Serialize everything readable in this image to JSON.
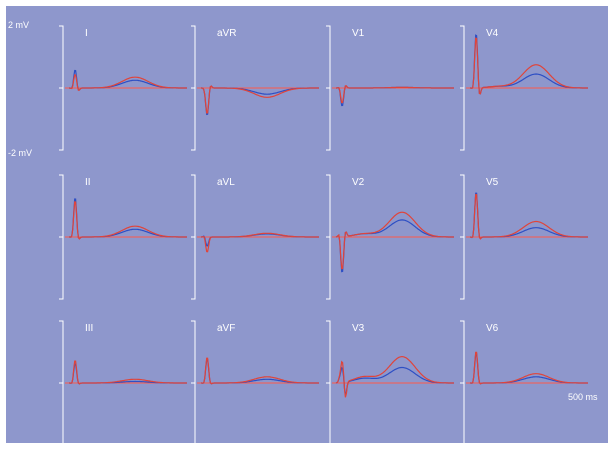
{
  "colors": {
    "background": "#8e97cc",
    "axis": "#ffffff",
    "baseline": "#ff5a4a",
    "series_blue": "#2e4fc4",
    "series_red": "#e0443a"
  },
  "scale": {
    "top_label": "2 mV",
    "bottom_label": "-2 mV",
    "time_label": "500 ms"
  },
  "chart_data": {
    "type": "line",
    "title": "",
    "layout": "3 rows x 4 columns of leads",
    "y_unit": "mV",
    "ylim": [
      -2,
      2
    ],
    "x_unit": "ms",
    "xlim": [
      0,
      500
    ],
    "grid": false,
    "series_names": [
      "",
      ""
    ],
    "leads": [
      {
        "name": "I",
        "blue": {
          "q": -0.05,
          "r": 0.6,
          "s": -0.1,
          "st": 0.0,
          "t": 0.25
        },
        "red": {
          "q": -0.05,
          "r": 0.45,
          "s": -0.1,
          "st": 0.0,
          "t": 0.35
        }
      },
      {
        "name": "aVR",
        "blue": {
          "q": 0.0,
          "r": -0.9,
          "s": 0.1,
          "st": 0.0,
          "t": -0.2
        },
        "red": {
          "q": 0.0,
          "r": -0.85,
          "s": 0.1,
          "st": 0.0,
          "t": -0.3
        }
      },
      {
        "name": "V1",
        "blue": {
          "q": 0.05,
          "r": -0.6,
          "s": 0.1,
          "st": 0.0,
          "t": 0.02
        },
        "red": {
          "q": 0.05,
          "r": -0.5,
          "s": 0.1,
          "st": 0.0,
          "t": 0.02
        }
      },
      {
        "name": "V4",
        "blue": {
          "q": -0.1,
          "r": 1.8,
          "s": -0.3,
          "st": 0.05,
          "t": 0.45
        },
        "red": {
          "q": -0.1,
          "r": 1.7,
          "s": -0.3,
          "st": 0.05,
          "t": 0.75
        }
      },
      {
        "name": "II",
        "blue": {
          "q": -0.05,
          "r": 1.3,
          "s": -0.1,
          "st": 0.0,
          "t": 0.25
        },
        "red": {
          "q": -0.05,
          "r": 1.2,
          "s": -0.1,
          "st": 0.0,
          "t": 0.35
        }
      },
      {
        "name": "aVL",
        "blue": {
          "q": 0.05,
          "r": -0.3,
          "s": 0.0,
          "st": 0.0,
          "t": 0.1
        },
        "red": {
          "q": 0.05,
          "r": -0.5,
          "s": 0.0,
          "st": 0.0,
          "t": 0.12
        }
      },
      {
        "name": "V2",
        "blue": {
          "q": 0.15,
          "r": -1.2,
          "s": 0.2,
          "st": 0.1,
          "t": 0.55
        },
        "red": {
          "q": 0.15,
          "r": -1.1,
          "s": 0.2,
          "st": 0.1,
          "t": 0.8
        }
      },
      {
        "name": "V5",
        "blue": {
          "q": -0.1,
          "r": 1.5,
          "s": -0.1,
          "st": 0.0,
          "t": 0.3
        },
        "red": {
          "q": -0.1,
          "r": 1.45,
          "s": -0.1,
          "st": 0.0,
          "t": 0.5
        }
      },
      {
        "name": "III",
        "blue": {
          "q": -0.05,
          "r": 0.65,
          "s": -0.05,
          "st": 0.0,
          "t": 0.05
        },
        "red": {
          "q": -0.05,
          "r": 0.75,
          "s": -0.05,
          "st": 0.0,
          "t": 0.12
        }
      },
      {
        "name": "aVF",
        "blue": {
          "q": -0.05,
          "r": 0.8,
          "s": -0.05,
          "st": 0.0,
          "t": 0.12
        },
        "red": {
          "q": -0.05,
          "r": 0.85,
          "s": -0.05,
          "st": 0.0,
          "t": 0.2
        }
      },
      {
        "name": "V3",
        "blue": {
          "q": 0.1,
          "r": 0.5,
          "s": -0.45,
          "st": 0.15,
          "t": 0.5
        },
        "red": {
          "q": 0.1,
          "r": 0.7,
          "s": -0.55,
          "st": 0.2,
          "t": 0.85
        }
      },
      {
        "name": "V6",
        "blue": {
          "q": -0.05,
          "r": 1.0,
          "s": -0.05,
          "st": 0.0,
          "t": 0.2
        },
        "red": {
          "q": -0.05,
          "r": 1.05,
          "s": -0.05,
          "st": 0.0,
          "t": 0.3
        }
      }
    ]
  }
}
